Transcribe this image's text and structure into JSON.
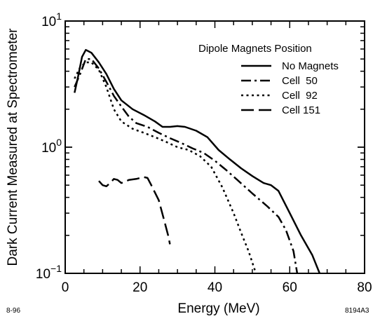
{
  "chart_data": {
    "type": "line",
    "title": "",
    "xlabel": "Energy  (MeV)",
    "ylabel": "Dark Current Measured at Spectrometer",
    "xlim": [
      0,
      80
    ],
    "ylim": [
      0.1,
      10
    ],
    "y_scale": "log",
    "grid": false,
    "legend_position": "top-right",
    "legend_title": "Dipole Magnets Position",
    "x_ticks": [
      "0",
      "20",
      "40",
      "60",
      "80"
    ],
    "y_ticks": [
      {
        "value": 10,
        "mantissa": "10",
        "exponent": "1"
      },
      {
        "value": 1,
        "mantissa": "10",
        "exponent": "0"
      },
      {
        "value": 0.1,
        "mantissa": "10",
        "exponent": "−1"
      }
    ],
    "corner_left": "8-96",
    "corner_right": "8194A3",
    "series": [
      {
        "name": "No Magnets",
        "style": "solid",
        "points": [
          [
            2.5,
            2.7
          ],
          [
            3.5,
            3.7
          ],
          [
            4.5,
            5.2
          ],
          [
            5.5,
            5.9
          ],
          [
            7,
            5.6
          ],
          [
            9,
            4.7
          ],
          [
            11,
            3.8
          ],
          [
            13,
            2.9
          ],
          [
            15,
            2.35
          ],
          [
            18,
            2.0
          ],
          [
            21,
            1.8
          ],
          [
            24,
            1.6
          ],
          [
            26,
            1.45
          ],
          [
            28,
            1.45
          ],
          [
            30,
            1.47
          ],
          [
            32,
            1.45
          ],
          [
            35,
            1.35
          ],
          [
            38,
            1.2
          ],
          [
            41,
            0.95
          ],
          [
            44,
            0.8
          ],
          [
            47,
            0.68
          ],
          [
            50,
            0.59
          ],
          [
            53,
            0.52
          ],
          [
            55,
            0.5
          ],
          [
            57,
            0.45
          ],
          [
            60,
            0.3
          ],
          [
            63,
            0.2
          ],
          [
            66,
            0.14
          ],
          [
            68,
            0.1
          ]
        ]
      },
      {
        "name": "Cell  50",
        "style": "dashdot",
        "points": [
          [
            2.5,
            3.0
          ],
          [
            4,
            3.8
          ],
          [
            5.5,
            5.0
          ],
          [
            7,
            5.0
          ],
          [
            9,
            4.2
          ],
          [
            11,
            3.3
          ],
          [
            13,
            2.55
          ],
          [
            15,
            2.1
          ],
          [
            17,
            1.75
          ],
          [
            19,
            1.55
          ],
          [
            22,
            1.45
          ],
          [
            25,
            1.3
          ],
          [
            28,
            1.18
          ],
          [
            31,
            1.08
          ],
          [
            34,
            0.98
          ],
          [
            37,
            0.9
          ],
          [
            40,
            0.78
          ],
          [
            43,
            0.66
          ],
          [
            46,
            0.55
          ],
          [
            50,
            0.43
          ],
          [
            54,
            0.34
          ],
          [
            57,
            0.28
          ],
          [
            59,
            0.22
          ],
          [
            61,
            0.15
          ],
          [
            62,
            0.1
          ]
        ]
      },
      {
        "name": "Cell  92",
        "style": "dotted",
        "points": [
          [
            2.5,
            3.5
          ],
          [
            4,
            4.3
          ],
          [
            5.5,
            4.7
          ],
          [
            7,
            4.7
          ],
          [
            9,
            4.1
          ],
          [
            11,
            3.0
          ],
          [
            13,
            2.0
          ],
          [
            15,
            1.6
          ],
          [
            18,
            1.4
          ],
          [
            21,
            1.3
          ],
          [
            24,
            1.2
          ],
          [
            27,
            1.1
          ],
          [
            30,
            1.0
          ],
          [
            33,
            0.95
          ],
          [
            36,
            0.85
          ],
          [
            39,
            0.7
          ],
          [
            42,
            0.48
          ],
          [
            45,
            0.3
          ],
          [
            47,
            0.21
          ],
          [
            49,
            0.15
          ],
          [
            50.5,
            0.11
          ],
          [
            51,
            0.1
          ]
        ]
      },
      {
        "name": "Cell 151",
        "style": "longdash",
        "points": [
          [
            9,
            0.54
          ],
          [
            10,
            0.5
          ],
          [
            11,
            0.49
          ],
          [
            12,
            0.52
          ],
          [
            13,
            0.56
          ],
          [
            14,
            0.55
          ],
          [
            15,
            0.52
          ],
          [
            16,
            0.53
          ],
          [
            17,
            0.55
          ],
          [
            19,
            0.56
          ],
          [
            21,
            0.58
          ],
          [
            22,
            0.57
          ],
          [
            23,
            0.5
          ],
          [
            25,
            0.38
          ],
          [
            26.5,
            0.26
          ],
          [
            27.5,
            0.2
          ],
          [
            28,
            0.17
          ]
        ]
      }
    ]
  }
}
